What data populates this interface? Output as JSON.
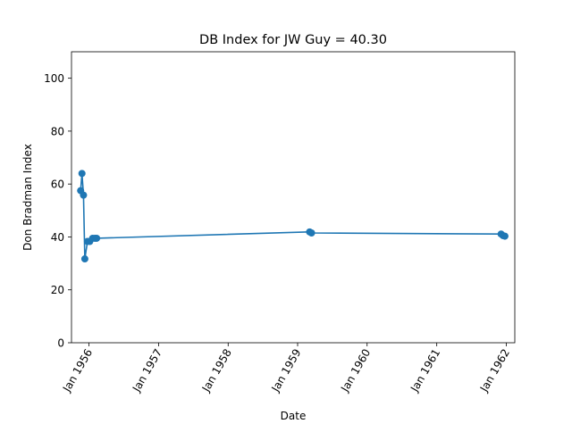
{
  "chart_data": {
    "type": "line",
    "title": "DB Index for JW Guy = 40.30",
    "xlabel": "Date",
    "ylabel": "Don Bradman Index",
    "x_ticks": [
      "Jan 1956",
      "Jan 1957",
      "Jan 1958",
      "Jan 1959",
      "Jan 1960",
      "Jan 1961",
      "Jan 1962"
    ],
    "x_range": [
      "1955-10-01",
      "1962-02-15"
    ],
    "y_ticks": [
      0,
      20,
      40,
      60,
      80,
      100
    ],
    "ylim": [
      0,
      110
    ],
    "grid": false,
    "color": "#1f77b4",
    "series": [
      {
        "points": [
          {
            "x": "1955-11-18",
            "y": 57.5
          },
          {
            "x": "1955-11-25",
            "y": 64.0
          },
          {
            "x": "1955-12-03",
            "y": 55.8
          },
          {
            "x": "1955-12-10",
            "y": 31.7
          },
          {
            "x": "1955-12-24",
            "y": 38.3
          },
          {
            "x": "1956-01-05",
            "y": 38.3
          },
          {
            "x": "1956-01-20",
            "y": 39.5
          },
          {
            "x": "1956-02-01",
            "y": 39.5
          },
          {
            "x": "1956-02-10",
            "y": 39.5
          },
          {
            "x": "1959-03-05",
            "y": 41.9
          },
          {
            "x": "1959-03-15",
            "y": 41.5
          },
          {
            "x": "1961-12-05",
            "y": 41.1
          },
          {
            "x": "1961-12-15",
            "y": 40.5
          },
          {
            "x": "1961-12-25",
            "y": 40.3
          }
        ]
      }
    ]
  }
}
